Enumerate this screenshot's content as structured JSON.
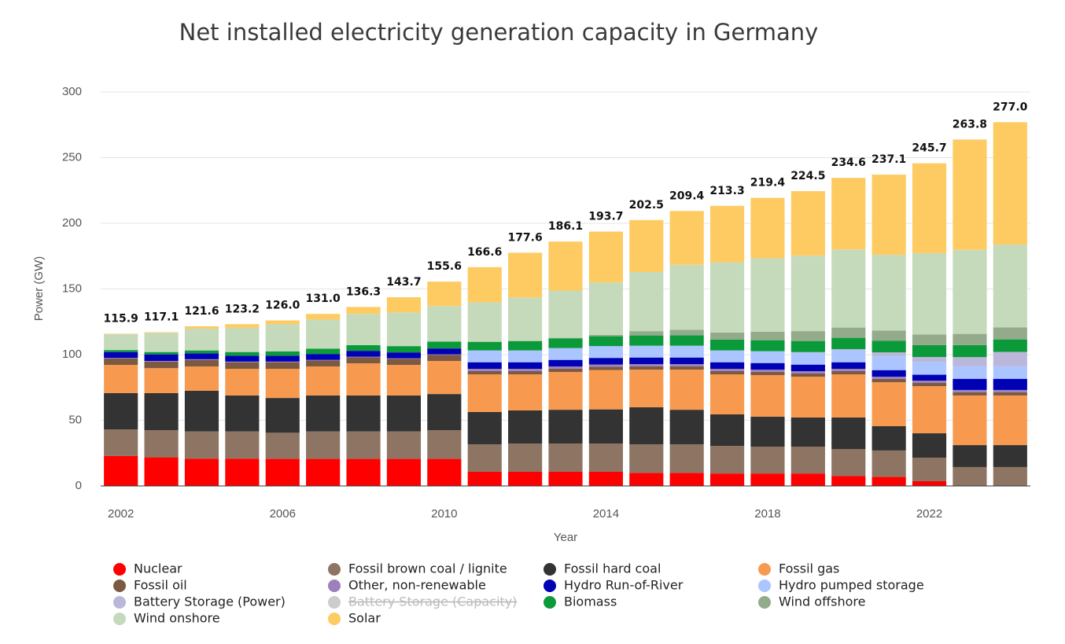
{
  "chart_data": {
    "type": "stacked_bar",
    "title": "Net installed electricity generation capacity in Germany",
    "y_label": "Power (GW)",
    "x_label": "Year",
    "categories": [
      "2002",
      null,
      null,
      null,
      "2006",
      null,
      null,
      null,
      "2010",
      null,
      null,
      null,
      "2014",
      null,
      null,
      null,
      "2018",
      null,
      null,
      null,
      "2022",
      null,
      null
    ],
    "ylim": [
      0,
      300
    ],
    "yticks": [
      0,
      50,
      100,
      150,
      200,
      250,
      300
    ],
    "grid": true,
    "legend": "bottom",
    "totals": [
      115.9,
      117.1,
      121.6,
      123.2,
      126.0,
      131.0,
      136.3,
      143.7,
      155.6,
      166.6,
      177.6,
      186.1,
      193.7,
      202.5,
      209.4,
      213.3,
      219.4,
      224.5,
      234.6,
      237.1,
      245.7,
      263.8,
      277.0
    ],
    "total_labels": [
      "115.9",
      "117.1",
      "121.6",
      "123.2",
      "126.0",
      "131.0",
      "136.3",
      "143.7",
      "155.6",
      "166.6",
      "177.6",
      "186.1",
      "193.7",
      "202.5",
      "209.4",
      "213.3",
      "219.4",
      "224.5",
      "234.6",
      "237.1",
      "245.7",
      "263.8",
      "277.0"
    ],
    "series": [
      {
        "name": "Nuclear",
        "color": "#ff0000",
        "visible": true,
        "values": [
          22.8,
          21.8,
          20.8,
          20.8,
          20.6,
          20.6,
          20.6,
          20.6,
          20.6,
          10.8,
          10.8,
          10.8,
          10.8,
          10,
          10,
          9.5,
          9.5,
          9.5,
          7.5,
          7,
          3.6,
          0,
          0
        ]
      },
      {
        "name": "Fossil brown coal / lignite",
        "color": "#8e7462",
        "visible": true,
        "values": [
          20.3,
          20.7,
          20.7,
          20.7,
          19.9,
          20.9,
          20.9,
          20.9,
          21.9,
          20.9,
          21.5,
          21.5,
          21.5,
          21.7,
          21.7,
          21,
          20.4,
          20.4,
          20.5,
          20,
          17.9,
          14.4,
          14.4
        ]
      },
      {
        "name": "Fossil hard coal",
        "color": "#333333",
        "visible": true,
        "values": [
          27.6,
          28.2,
          31,
          27.4,
          26.5,
          27.4,
          27.4,
          27.4,
          27.5,
          24.6,
          25.2,
          25.7,
          26,
          28.2,
          26.3,
          24,
          22.8,
          22.2,
          24.1,
          18.5,
          18.6,
          16.7,
          16.7
        ]
      },
      {
        "name": "Fossil gas",
        "color": "#f79a4f",
        "visible": true,
        "values": [
          21.5,
          19,
          18.5,
          20.3,
          22.2,
          22.1,
          24.5,
          23.3,
          25.2,
          28.7,
          27.5,
          28.8,
          30,
          28.7,
          30.6,
          30.5,
          31.7,
          31.1,
          32.9,
          33.5,
          35.9,
          37.8,
          37.8
        ]
      },
      {
        "name": "Fossil oil",
        "color": "#7c5a42",
        "visible": true,
        "values": [
          4.8,
          5,
          5,
          5,
          5,
          4.5,
          4.5,
          4.5,
          4.5,
          2.5,
          2.5,
          2.5,
          2.5,
          2.5,
          2.5,
          2.5,
          2.5,
          2.5,
          2.5,
          2.5,
          2.5,
          2.5,
          2.5
        ]
      },
      {
        "name": "Other, non-renewable",
        "color": "#9c80bd",
        "visible": true,
        "values": [
          0.5,
          0.5,
          0.5,
          0.5,
          0.5,
          0.5,
          0.5,
          0.5,
          0.5,
          1.7,
          1.7,
          1.7,
          1.7,
          1.7,
          1.7,
          1.7,
          1.7,
          1.7,
          1.7,
          1.7,
          1.7,
          1.7,
          1.7
        ]
      },
      {
        "name": "Hydro Run-of-River",
        "color": "#0000b4",
        "visible": true,
        "values": [
          4.5,
          5,
          4.5,
          4.5,
          4.5,
          4.5,
          4.5,
          4.5,
          4.5,
          5,
          5,
          5,
          5,
          5,
          5,
          5,
          5,
          5,
          5,
          5,
          4.5,
          8.5,
          8.5
        ]
      },
      {
        "name": "Hydro pumped storage",
        "color": "#aac5ff",
        "visible": true,
        "values": [
          0,
          0,
          0,
          0,
          0,
          0,
          0,
          0,
          0,
          9,
          9,
          9,
          9,
          9,
          9,
          9,
          9,
          9,
          9,
          10.5,
          9.5,
          9.5,
          9.5
        ]
      },
      {
        "name": "Battery Storage (Power)",
        "color": "#bab7db",
        "visible": true,
        "values": [
          0,
          0,
          0,
          0,
          0,
          0,
          0,
          0,
          0,
          0,
          0,
          0,
          0,
          0,
          0,
          0,
          0,
          0.5,
          1,
          3,
          4,
          7,
          11
        ]
      },
      {
        "name": "Battery Storage (Capacity)",
        "color": "#cccccc",
        "visible": false,
        "values": [
          null,
          null,
          null,
          null,
          null,
          null,
          null,
          null,
          null,
          null,
          null,
          null,
          null,
          null,
          null,
          null,
          null,
          null,
          null,
          null,
          null,
          null,
          null
        ]
      },
      {
        "name": "Biomass",
        "color": "#0b9a3a",
        "visible": true,
        "values": [
          1.5,
          1.8,
          2.2,
          2.8,
          3.3,
          4,
          4.3,
          4.8,
          5.2,
          6.5,
          7,
          7.3,
          7.5,
          7.8,
          8,
          8.2,
          8.4,
          8.5,
          8.6,
          8.8,
          9,
          9.2,
          9.5
        ]
      },
      {
        "name": "Wind offshore",
        "color": "#93aa8b",
        "visible": true,
        "values": [
          0,
          0,
          0,
          0,
          0,
          0,
          0,
          0,
          0.1,
          0.2,
          0.3,
          0.5,
          1,
          3.3,
          4.1,
          5.4,
          6.4,
          7.5,
          7.8,
          7.8,
          8.1,
          8.5,
          9.2
        ]
      },
      {
        "name": "Wind onshore",
        "color": "#c5dabb",
        "visible": true,
        "values": [
          12,
          14.6,
          16.6,
          18.4,
          20.6,
          22.2,
          23.8,
          25.7,
          27,
          30,
          33,
          36,
          40,
          45,
          49.5,
          53.5,
          56,
          57.5,
          59.5,
          57.7,
          62,
          64,
          63
        ]
      },
      {
        "name": "Solar",
        "color": "#fecb62",
        "visible": true,
        "values": [
          0.4,
          0.5,
          1.8,
          2.8,
          2.9,
          4.3,
          5.3,
          11.5,
          18.6,
          26.7,
          34.1,
          37.3,
          38.7,
          39.6,
          41.0,
          43.0,
          46.0,
          49.1,
          54.5,
          61.1,
          68.4,
          84.0,
          93.2
        ]
      }
    ]
  }
}
